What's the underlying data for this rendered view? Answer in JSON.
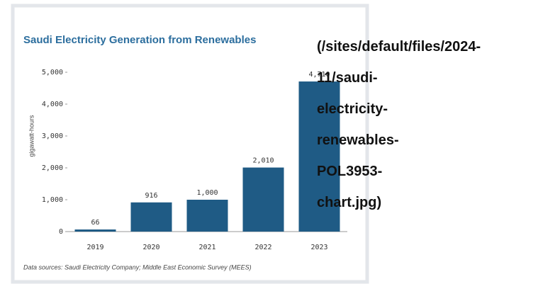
{
  "chart_data": {
    "type": "bar",
    "title": "Saudi Electricity Generation from Renewables",
    "y_label": "gigawatt-hours",
    "categories": [
      "2019",
      "2020",
      "2021",
      "2022",
      "2023"
    ],
    "values": [
      66,
      916,
      1000,
      2010,
      4710
    ],
    "value_labels": [
      "66",
      "916",
      "1,000",
      "2,010",
      "4,710"
    ],
    "color": "#1f5b85",
    "ylim": [
      0,
      5000
    ],
    "yticks": [
      0,
      {
        "value": 1000,
        "label": "1,000"
      },
      {
        "value": 2000,
        "label": "2,000"
      },
      {
        "value": 3000,
        "label": "3,000"
      },
      {
        "value": 4000,
        "label": "4,000"
      },
      {
        "value": 5000,
        "label": "5,000"
      }
    ],
    "source": "Data sources: Saudi Electricity Company; Middle East Economic Survey (MEES)"
  },
  "link_text": [
    "(/sites/default/files/2024-",
    "11/saudi-",
    "electricity-",
    "renewables-",
    "POL3953-",
    "chart.jpg)"
  ]
}
